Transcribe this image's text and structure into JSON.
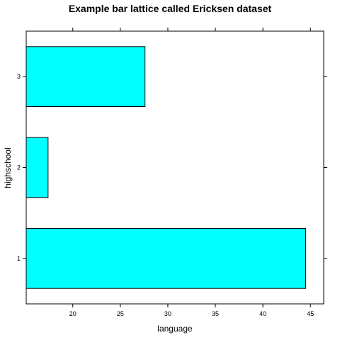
{
  "chart_data": {
    "type": "bar",
    "orientation": "horizontal",
    "title": "Example bar lattice called Ericksen dataset",
    "xlabel": "language",
    "ylabel": "highschool",
    "categories": [
      "1",
      "2",
      "3"
    ],
    "values": [
      44.5,
      17.4,
      27.6
    ],
    "xlim": [
      15.1,
      46.4
    ],
    "xticks": [
      20,
      25,
      30,
      35,
      40,
      45
    ],
    "bar_color": "#00FFFF",
    "grid": false,
    "legend": "none"
  }
}
